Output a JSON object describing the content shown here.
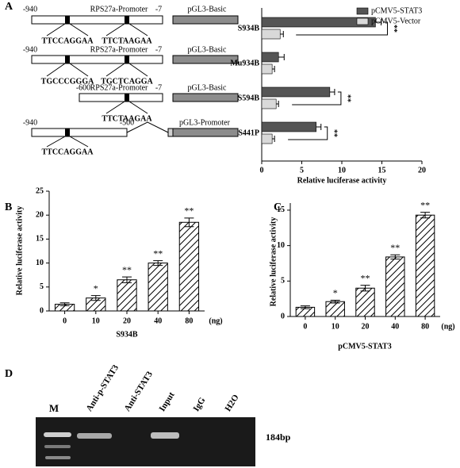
{
  "panels": [
    "A",
    "B",
    "C",
    "D"
  ],
  "constructs": [
    {
      "start": "-940",
      "promoter": "RPS27a-Promoter",
      "end": "-7",
      "vector": "pGL3-Basic",
      "sites": [
        "TTCCAGGAA",
        "TTCTAAGAA"
      ]
    },
    {
      "start": "-940",
      "promoter": "RPS27a-Promoter",
      "end": "-7",
      "vector": "pGL3-Basic",
      "sites": [
        "TGCCCGGGA",
        "TGCTCAGGA"
      ]
    },
    {
      "start": "-600",
      "promoter": "RPS27a-Promoter",
      "end": "-7",
      "vector": "pGL3-Basic",
      "sites": [
        "TTCTAAGAA"
      ]
    },
    {
      "start": "-940",
      "end": "-500",
      "vector": "pGL3-Promoter",
      "sites": [
        "TTCCAGGAA"
      ]
    }
  ],
  "chart_data": [
    {
      "type": "bar",
      "orientation": "horizontal",
      "categories": [
        "S934B",
        "Mu934B",
        "S594B",
        "S441P"
      ],
      "series": [
        {
          "name": "pCMV5-STAT3",
          "color": "#555555",
          "values": [
            14.2,
            2.1,
            8.5,
            6.8
          ],
          "errors": [
            0.7,
            0.7,
            0.6,
            0.6
          ]
        },
        {
          "name": "pCMV5-Vector",
          "color": "#d9d9d9",
          "values": [
            2.3,
            1.3,
            1.8,
            1.3
          ],
          "errors": [
            0.4,
            0.3,
            0.3,
            0.3
          ]
        }
      ],
      "xlabel": "Relative luciferase activity",
      "xlim": [
        0,
        20
      ],
      "xticks": [
        0,
        5,
        10,
        15,
        20
      ],
      "significance": [
        "**",
        null,
        "**",
        "**"
      ],
      "legend": "upper right"
    },
    {
      "type": "bar",
      "categories": [
        "0",
        "10",
        "20",
        "40",
        "80"
      ],
      "values": [
        1.4,
        2.7,
        6.5,
        10.0,
        18.5
      ],
      "errors": [
        0.3,
        0.5,
        0.6,
        0.5,
        0.9
      ],
      "color": "#000000",
      "hatch": true,
      "xlabel": "S934B",
      "x_unit": "(ng)",
      "ylabel": "Relative luciferase activity",
      "ylim": [
        0,
        25
      ],
      "yticks": [
        0,
        5,
        10,
        15,
        20,
        25
      ],
      "significance": [
        null,
        "*",
        "**",
        "**",
        "**"
      ]
    },
    {
      "type": "bar",
      "categories": [
        "0",
        "10",
        "20",
        "40",
        "80"
      ],
      "values": [
        1.3,
        2.1,
        4.0,
        8.4,
        14.3
      ],
      "errors": [
        0.2,
        0.2,
        0.4,
        0.3,
        0.4
      ],
      "color": "#000000",
      "hatch": true,
      "xlabel": "pCMV5-STAT3",
      "x_unit": "(ng)",
      "ylabel": "Relative luciferase activity",
      "ylim": [
        0,
        16
      ],
      "yticks": [
        0,
        5,
        10,
        15
      ],
      "significance": [
        null,
        "*",
        "**",
        "**",
        "**"
      ]
    }
  ],
  "gel": {
    "lanes": [
      "M",
      "Anti-p-STAT3",
      "Anti-STAT3",
      "Input",
      "IgG",
      "H2O"
    ],
    "band_label": "184bp"
  }
}
